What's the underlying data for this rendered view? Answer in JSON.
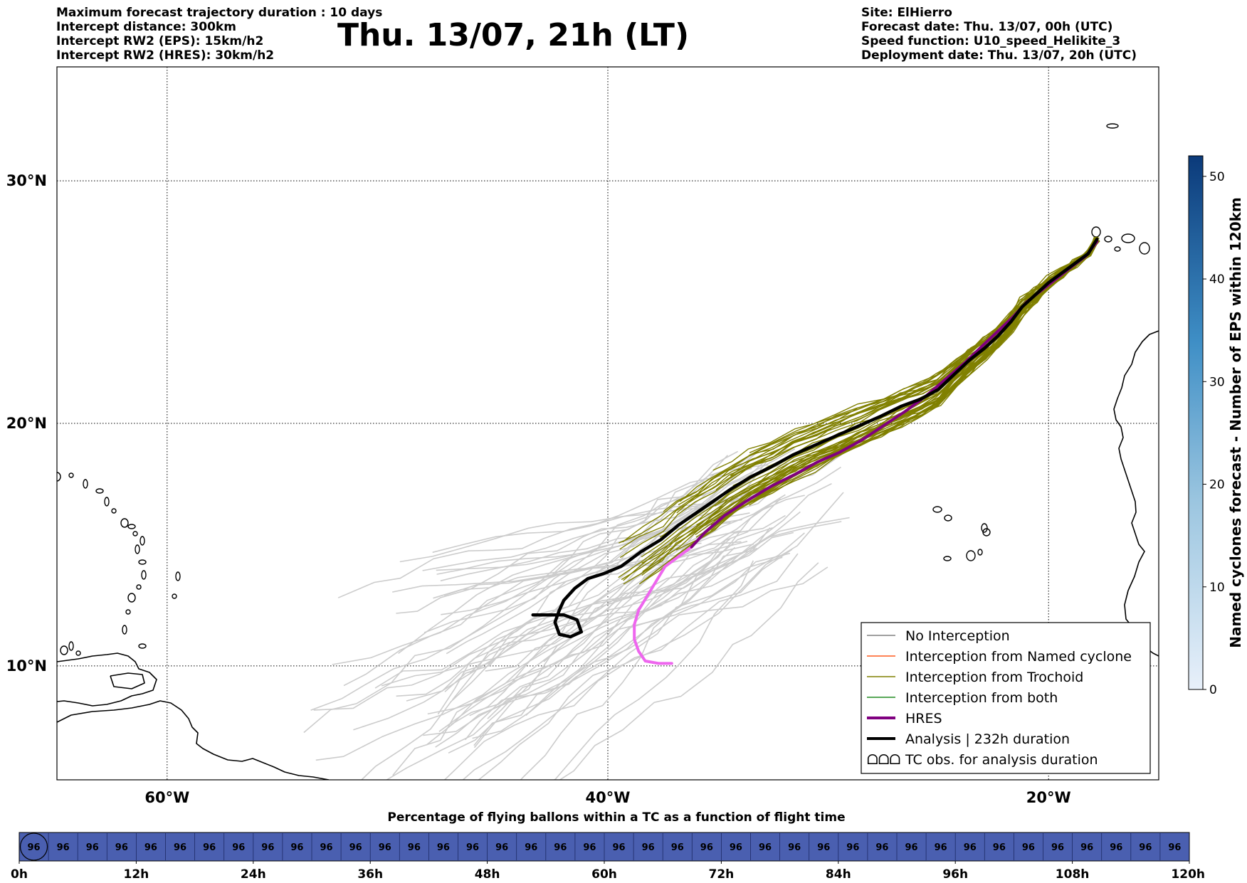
{
  "header": {
    "left_lines": [
      "Maximum forecast trajectory duration : 10 days",
      "Intercept distance: 300km",
      "Intercept RW2 (EPS):  15km/h2",
      "Intercept RW2 (HRES): 30km/h2"
    ],
    "title": "Thu. 13/07, 21h (LT)",
    "right_lines": [
      "Site: ElHierro",
      "Forecast date: Thu. 13/07, 00h (UTC)",
      "Speed function: U10_speed_Helikite_3",
      "Deployment date: Thu. 13/07, 20h (UTC)"
    ]
  },
  "map": {
    "extent": {
      "lon": [
        -65,
        -15
      ],
      "lat": [
        5.3,
        34.7
      ]
    },
    "lat_labels": [
      {
        "lat": 30,
        "label": "30°N"
      },
      {
        "lat": 20,
        "label": "20°N"
      },
      {
        "lat": 10,
        "label": "10°N"
      }
    ],
    "lon_labels": [
      {
        "lon": -60,
        "label": "60°W"
      },
      {
        "lon": -40,
        "label": "40°W"
      },
      {
        "lon": -20,
        "label": "20°W"
      }
    ],
    "colors": {
      "no_interception": "#cccccc",
      "named_cyclone": "#ff5a1f",
      "trochoid": "#808000",
      "both": "#228b22",
      "hres": "#800080",
      "hres_late": "#ee66ee",
      "analysis": "#000000"
    },
    "analysis_track": [
      [
        -17.8,
        27.6
      ],
      [
        -18.2,
        27.0
      ],
      [
        -18.8,
        26.6
      ],
      [
        -19.4,
        26.2
      ],
      [
        -20.0,
        25.8
      ],
      [
        -20.6,
        25.3
      ],
      [
        -21.2,
        24.8
      ],
      [
        -21.7,
        24.2
      ],
      [
        -22.3,
        23.6
      ],
      [
        -22.9,
        23.1
      ],
      [
        -23.6,
        22.6
      ],
      [
        -24.3,
        22.0
      ],
      [
        -25.0,
        21.4
      ],
      [
        -25.8,
        21.0
      ],
      [
        -26.7,
        20.7
      ],
      [
        -27.6,
        20.3
      ],
      [
        -28.6,
        19.9
      ],
      [
        -29.6,
        19.5
      ],
      [
        -30.6,
        19.1
      ],
      [
        -31.6,
        18.7
      ],
      [
        -32.6,
        18.2
      ],
      [
        -33.5,
        17.8
      ],
      [
        -34.4,
        17.3
      ],
      [
        -35.2,
        16.8
      ],
      [
        -36.0,
        16.3
      ],
      [
        -36.8,
        15.8
      ],
      [
        -37.6,
        15.2
      ],
      [
        -38.5,
        14.7
      ],
      [
        -39.4,
        14.1
      ],
      [
        -40.2,
        13.8
      ],
      [
        -40.9,
        13.6
      ],
      [
        -41.5,
        13.2
      ],
      [
        -42.0,
        12.7
      ],
      [
        -42.2,
        12.3
      ],
      [
        -42.4,
        11.8
      ],
      [
        -42.2,
        11.3
      ],
      [
        -41.7,
        11.2
      ],
      [
        -41.2,
        11.4
      ],
      [
        -41.4,
        11.9
      ],
      [
        -42.0,
        12.1
      ],
      [
        -42.8,
        12.1
      ],
      [
        -43.4,
        12.1
      ]
    ],
    "hres_track": [
      [
        -17.8,
        27.5
      ],
      [
        -18.3,
        26.9
      ],
      [
        -18.9,
        26.5
      ],
      [
        -19.6,
        26.0
      ],
      [
        -20.3,
        25.5
      ],
      [
        -21.0,
        25.0
      ],
      [
        -21.6,
        24.4
      ],
      [
        -22.3,
        23.8
      ],
      [
        -23.0,
        23.2
      ],
      [
        -23.8,
        22.5
      ],
      [
        -24.7,
        21.8
      ],
      [
        -25.6,
        21.1
      ],
      [
        -26.5,
        20.5
      ],
      [
        -27.5,
        19.9
      ],
      [
        -28.5,
        19.3
      ],
      [
        -29.5,
        18.8
      ],
      [
        -30.5,
        18.4
      ],
      [
        -31.5,
        17.9
      ],
      [
        -32.6,
        17.4
      ],
      [
        -33.7,
        16.8
      ],
      [
        -34.7,
        16.2
      ],
      [
        -35.6,
        15.5
      ],
      [
        -36.2,
        14.9
      ]
    ],
    "hres_late_track": [
      [
        -36.2,
        14.9
      ],
      [
        -36.8,
        14.5
      ],
      [
        -37.4,
        14.1
      ],
      [
        -37.8,
        13.5
      ],
      [
        -38.2,
        12.9
      ],
      [
        -38.6,
        12.3
      ],
      [
        -38.8,
        11.7
      ],
      [
        -38.8,
        11.1
      ],
      [
        -38.6,
        10.6
      ],
      [
        -38.3,
        10.2
      ],
      [
        -37.7,
        10.1
      ],
      [
        -37.1,
        10.1
      ]
    ],
    "islands": [
      {
        "name": "El Hierro",
        "lon": -17.98,
        "lat": 27.74
      }
    ]
  },
  "legend": {
    "items": [
      {
        "label": "No Interception",
        "style": "thin",
        "color": "#808080"
      },
      {
        "label": "Interception from Named cyclone",
        "style": "thin",
        "color": "#ff5a1f"
      },
      {
        "label": "Interception from Trochoid",
        "style": "thin",
        "color": "#808000"
      },
      {
        "label": "Interception from both",
        "style": "thin",
        "color": "#228b22"
      },
      {
        "label": "HRES",
        "style": "thick",
        "color": "#800080"
      },
      {
        "label": "Analysis | 232h duration",
        "style": "thick",
        "color": "#000000"
      },
      {
        "label": "TC obs. for analysis duration",
        "style": "symbol",
        "color": "#000000",
        "symbol": "ᗝᗝᗝ"
      }
    ]
  },
  "colorbar": {
    "label": "Named cyclones forecast - Number of EPS within 120km",
    "min": 0,
    "max": 52,
    "ticks": [
      0,
      10,
      20,
      30,
      40,
      50
    ],
    "color_low": "#e6eef8",
    "color_high": "#0b3a7a"
  },
  "timeline": {
    "title": "Percentage of flying ballons within a TC as a function of flight time",
    "values": [
      96,
      96,
      96,
      96,
      96,
      96,
      96,
      96,
      96,
      96,
      96,
      96,
      96,
      96,
      96,
      96,
      96,
      96,
      96,
      96,
      96,
      96,
      96,
      96,
      96,
      96,
      96,
      96,
      96,
      96,
      96,
      96,
      96,
      96,
      96,
      96,
      96,
      96,
      96,
      96
    ],
    "tick_labels": [
      "0h",
      "12h",
      "24h",
      "36h",
      "48h",
      "60h",
      "72h",
      "84h",
      "96h",
      "108h",
      "120h"
    ],
    "fill_color": "#4a5fb0"
  }
}
